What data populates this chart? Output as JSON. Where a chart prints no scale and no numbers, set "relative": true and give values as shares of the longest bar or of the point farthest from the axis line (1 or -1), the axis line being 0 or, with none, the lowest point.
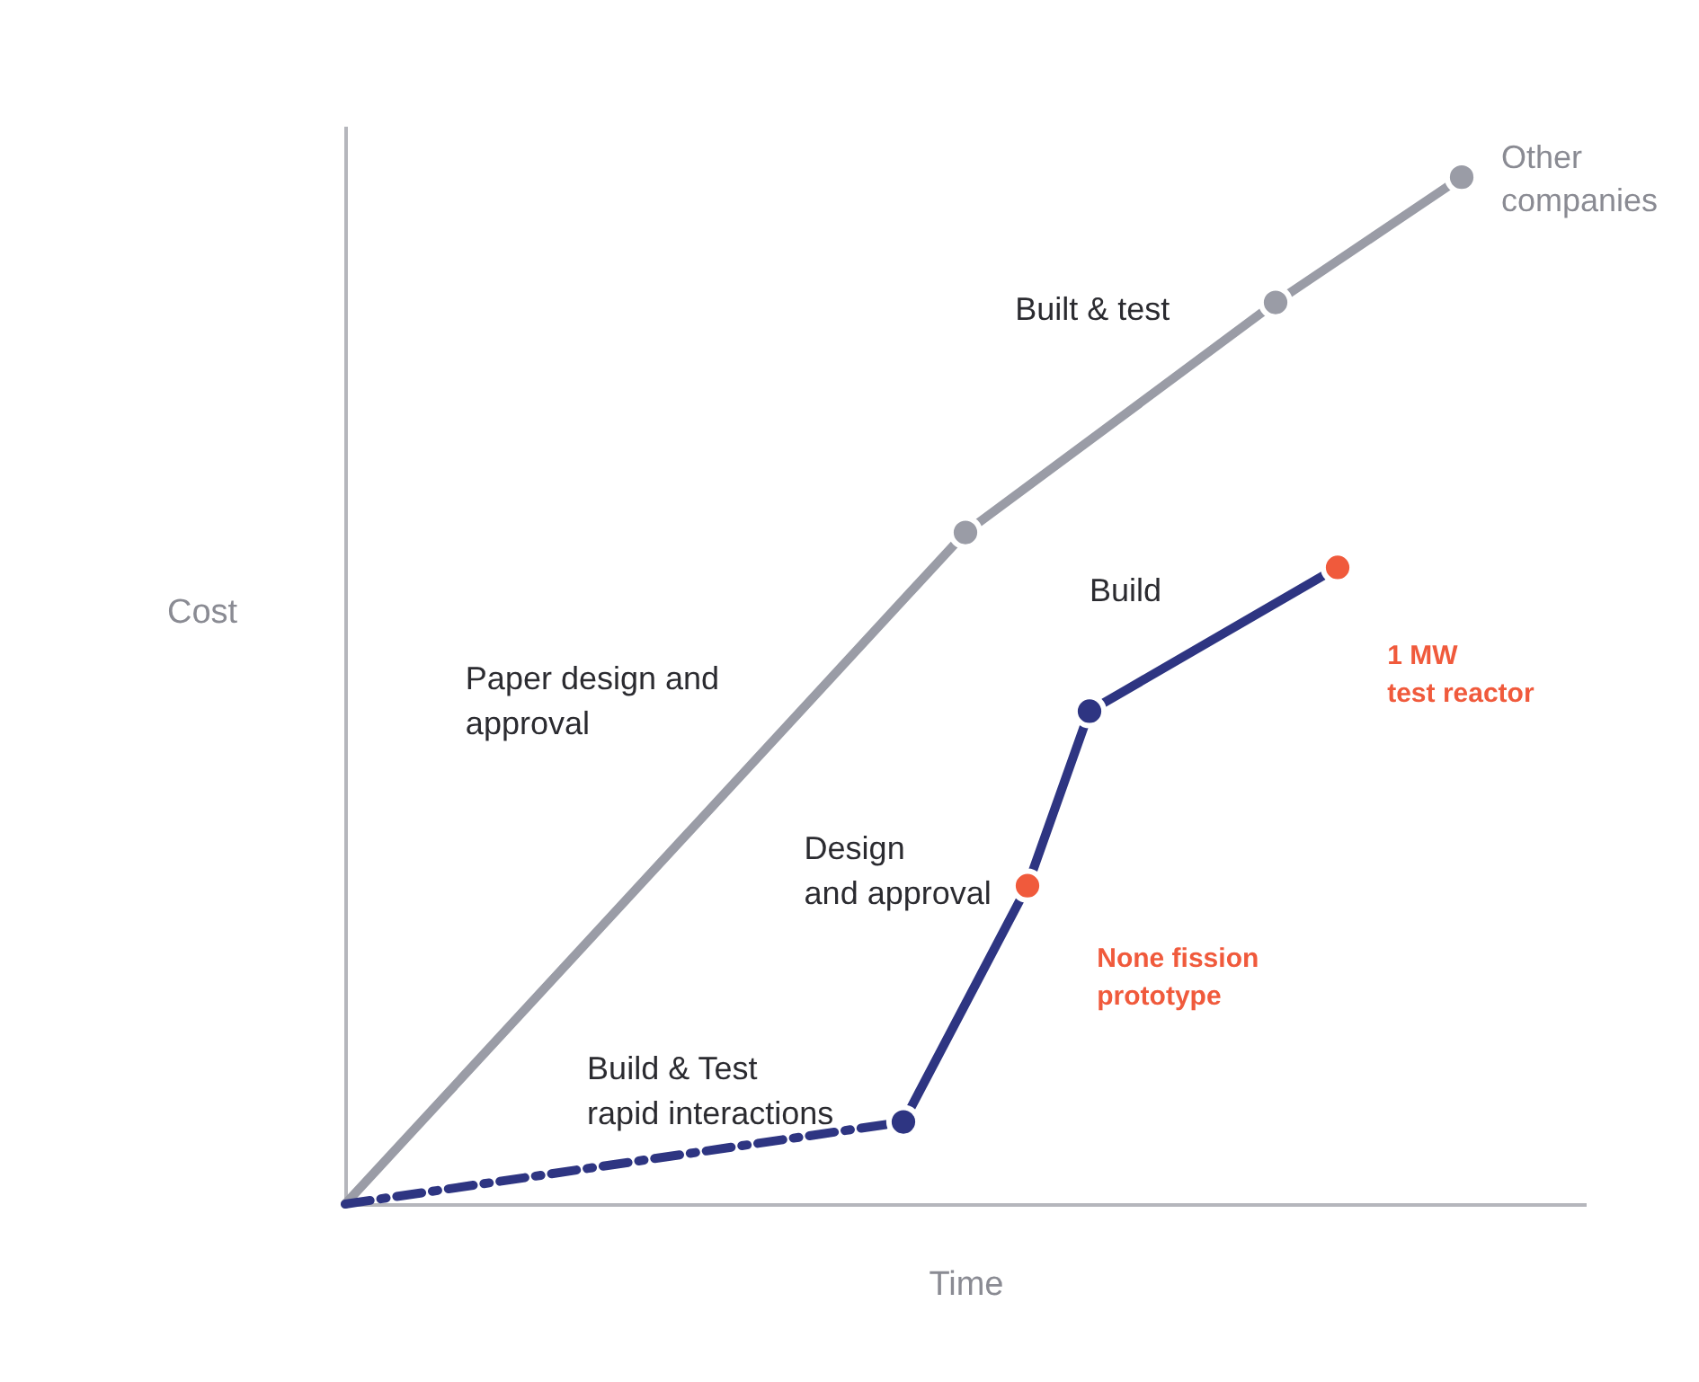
{
  "chart_data": {
    "type": "line",
    "relative": true,
    "xlabel": "Time",
    "ylabel": "Cost",
    "tick_labels": false,
    "grid": false,
    "categories": [
      null,
      null,
      null,
      null,
      null,
      null,
      null,
      null,
      null,
      null,
      null,
      null,
      null,
      null,
      null,
      null,
      null,
      null,
      null,
      null,
      null
    ],
    "series": [
      {
        "name": "Other companies",
        "color": "#9a9ca6",
        "values": [
          0,
          null,
          null,
          null,
          null,
          null,
          null,
          null,
          null,
          null,
          0.654,
          null,
          null,
          null,
          null,
          0.878,
          null,
          null,
          1,
          null,
          null
        ],
        "marker": "circle",
        "line_style": "solid"
      },
      {
        "color": "#2e3582",
        "values": [
          0,
          null,
          null,
          null,
          null,
          null,
          null,
          null,
          null,
          0.08,
          null,
          null,
          null,
          null,
          null,
          null,
          null,
          null,
          null,
          null,
          null
        ],
        "line_style": "dashed"
      },
      {
        "color": "#2e3582",
        "values": [
          null,
          null,
          null,
          null,
          null,
          null,
          null,
          null,
          null,
          0.08,
          null,
          0.31,
          0.48,
          null,
          null,
          null,
          0.62,
          null,
          null,
          null,
          null
        ],
        "colors": [
          null,
          null,
          null,
          null,
          null,
          null,
          null,
          null,
          null,
          "#2e3582",
          null,
          "#f05a3c",
          "#2e3582",
          null,
          null,
          null,
          "#f05a3c",
          null,
          null,
          null,
          null
        ],
        "marker": "circle",
        "line_style": "solid"
      }
    ],
    "annotations": [
      "Paper design and\napproval",
      "Built & test",
      "Build",
      "Design\nand approval",
      "Build & Test\nrapid interactions",
      "None fission\nprototype",
      "1 MW\ntest reactor"
    ]
  }
}
